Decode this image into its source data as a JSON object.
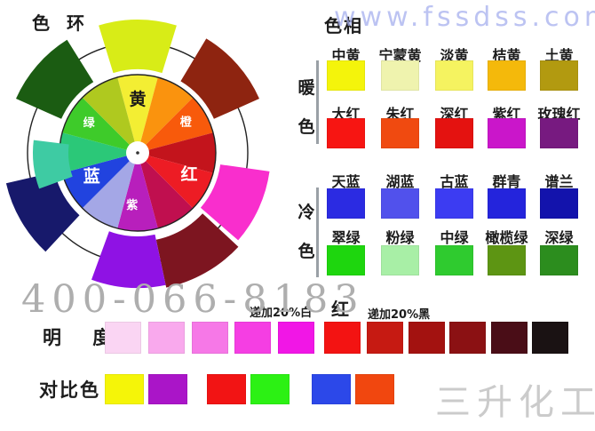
{
  "watermarks": {
    "site": "www.fssdss.com",
    "phone": "400-066-8183",
    "company": "三升化工"
  },
  "wheel": {
    "title": "色 环",
    "segments": [
      {
        "angle": 0,
        "color": "#F3EE33",
        "label": "黄",
        "label_color": "#1a1a1a",
        "major": true,
        "label_angle": 0,
        "label_r": 60
      },
      {
        "angle": 30,
        "color": "#FA930E"
      },
      {
        "angle": 60,
        "color": "#F85A0B",
        "label": "橙",
        "label_color": "#ffffff",
        "major": false,
        "label_angle": 58,
        "label_r": 64
      },
      {
        "angle": 90,
        "color": "#C3141C"
      },
      {
        "angle": 120,
        "color": "#ED1C24",
        "label": "红",
        "label_color": "#ffffff",
        "major": true,
        "label_angle": 113,
        "label_r": 63
      },
      {
        "angle": 150,
        "color": "#C00F4F"
      },
      {
        "angle": 180,
        "color": "#B81FBC",
        "label": "紫",
        "label_color": "#ffffff",
        "major": false,
        "label_angle": 186,
        "label_r": 60
      },
      {
        "angle": 210,
        "color": "#A4A7E6"
      },
      {
        "angle": 240,
        "color": "#2143DF",
        "label": "蓝",
        "label_color": "#ffffff",
        "major": true,
        "label_angle": 243,
        "label_r": 58
      },
      {
        "angle": 270,
        "color": "#2BC878"
      },
      {
        "angle": 300,
        "color": "#3ECB2A",
        "label": "绿",
        "label_color": "#ffffff",
        "major": false,
        "label_angle": 301,
        "label_r": 64
      },
      {
        "angle": 330,
        "color": "#AFC91F"
      }
    ],
    "outer_wedges": [
      {
        "start": -17,
        "end": 17,
        "r0": 94,
        "r1": 150,
        "color": "#D8EC17"
      },
      {
        "start": 31,
        "end": 66,
        "r0": 94,
        "r1": 150,
        "color": "#8E2410"
      },
      {
        "start": 98,
        "end": 131,
        "r0": 94,
        "r1": 150,
        "color": "#F92ECD"
      },
      {
        "start": 133,
        "end": 168,
        "r0": 100,
        "r1": 155,
        "color": "#7D1520"
      },
      {
        "start": 168,
        "end": 200,
        "r0": 94,
        "r1": 152,
        "color": "#8F12E4"
      },
      {
        "start": 223,
        "end": 257,
        "r0": 96,
        "r1": 152,
        "color": "#17196B"
      },
      {
        "start": 250,
        "end": 277,
        "r0": 78,
        "r1": 118,
        "color": "#3ECBA3"
      },
      {
        "start": 294,
        "end": 328,
        "r0": 94,
        "r1": 150,
        "color": "#1B5C12"
      }
    ]
  },
  "hue_panel": {
    "title": "色相",
    "groups": [
      {
        "name": "warm",
        "side_chars": [
          "暖",
          "色"
        ],
        "rows": [
          {
            "labels": [
              "中黄",
              "宁蒙黄",
              "淡黄",
              "桔黄",
              "土黄"
            ],
            "colors": [
              "#F4F40B",
              "#EFF3AE",
              "#F5F360",
              "#F4B90B",
              "#B29A10"
            ]
          },
          {
            "labels": [
              "大红",
              "朱红",
              "深红",
              "紫红",
              "玫瑰红"
            ],
            "colors": [
              "#F71512",
              "#F04A10",
              "#E41210",
              "#CA16CA",
              "#771A80"
            ]
          }
        ]
      },
      {
        "name": "cool",
        "side_chars": [
          "冷",
          "色"
        ],
        "rows": [
          {
            "labels": [
              "天蓝",
              "湖蓝",
              "古蓝",
              "群青",
              "谱兰"
            ],
            "colors": [
              "#2B2BE2",
              "#5151EC",
              "#3C3CF2",
              "#2424DC",
              "#1313AC"
            ]
          },
          {
            "labels": [
              "翠绿",
              "粉绿",
              "中绿",
              "橄榄绿",
              "深绿"
            ],
            "colors": [
              "#1ED60E",
              "#A8EFA6",
              "#2FCB2F",
              "#5D9513",
              "#2C8D1E"
            ]
          }
        ]
      }
    ]
  },
  "brightness": {
    "title": "明 度",
    "note_white": "递加20%白",
    "base_label": "红",
    "note_black": "递加20%黑",
    "white_steps": [
      "#FAD5F3",
      "#F9A9ED",
      "#F678E7",
      "#F53EE3",
      "#F116E6"
    ],
    "base_color": "#F31312",
    "black_steps": [
      "#C61A12",
      "#A31210",
      "#8B1113",
      "#4A0D17",
      "#1A1213"
    ]
  },
  "contrast": {
    "title": "对比色",
    "pairs": [
      [
        "#F5F508",
        "#AA15C8"
      ],
      [
        "#F21414",
        "#2CF114"
      ],
      [
        "#2C48E9",
        "#F1470F"
      ]
    ]
  }
}
